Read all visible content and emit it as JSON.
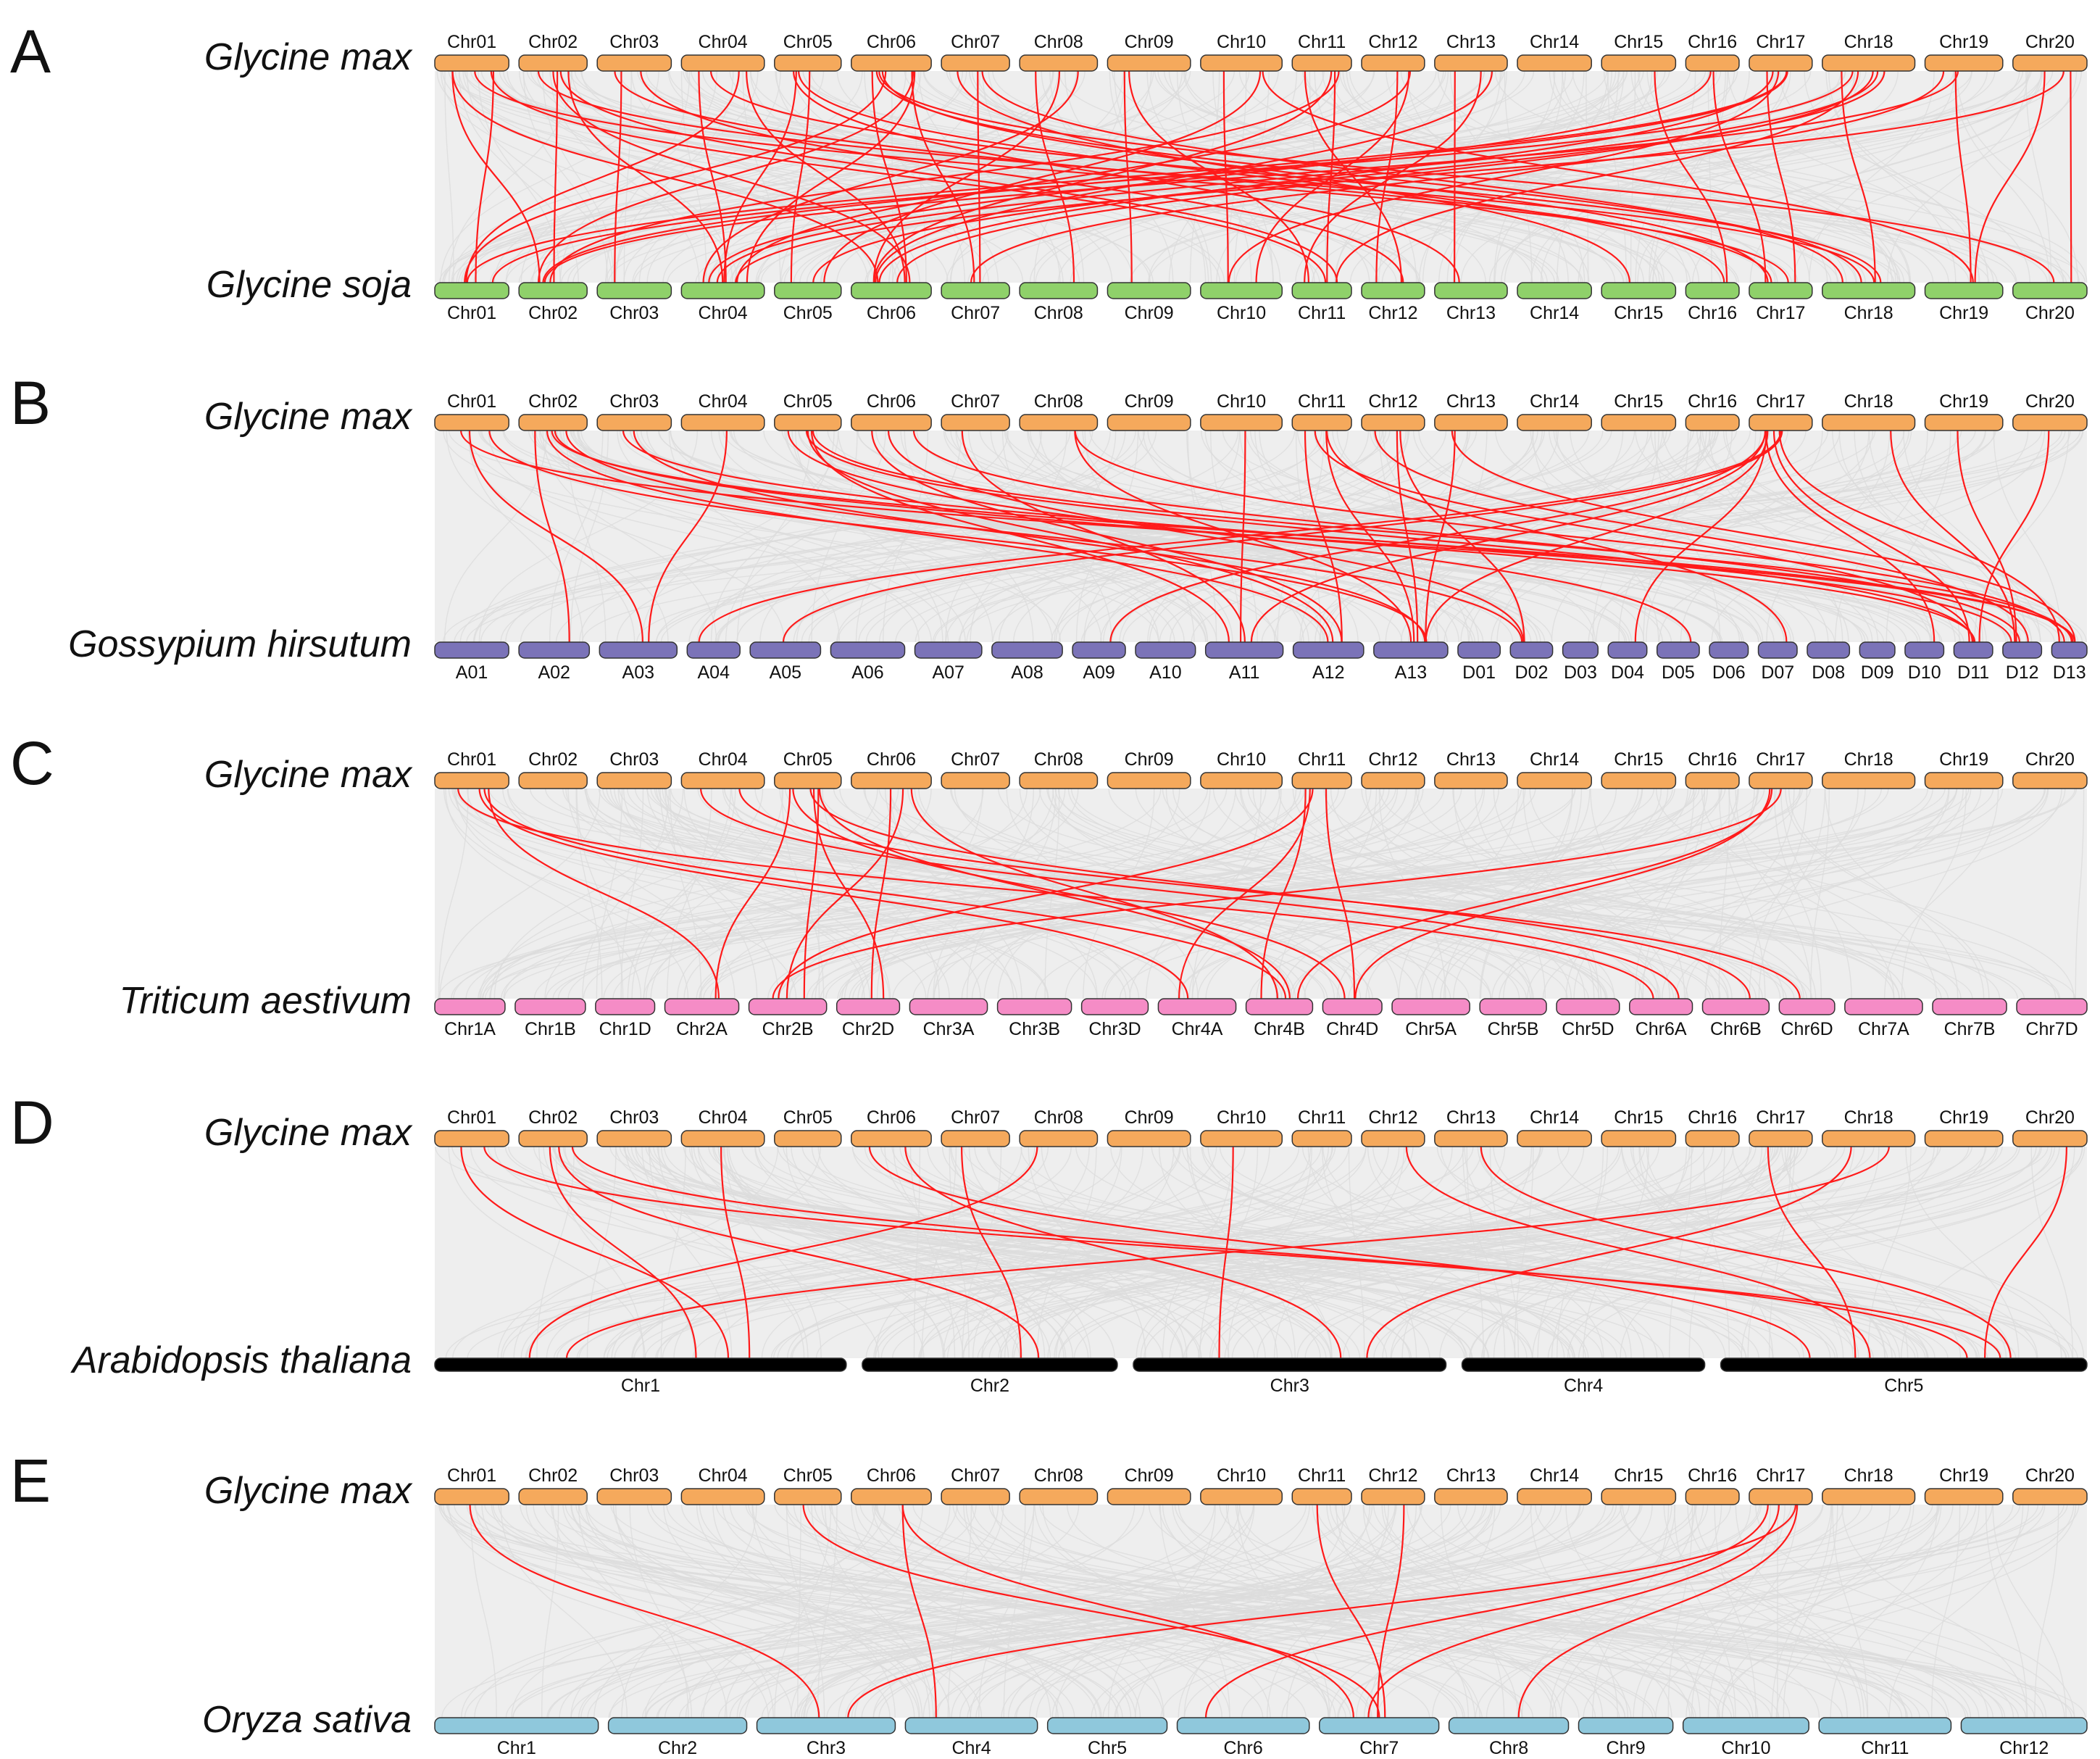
{
  "colors": {
    "bg_band": "#eeeeee",
    "synteny_bg": "#dcdcdc",
    "highlight": "#ff1a1a",
    "glycine_max": "#f5a95c",
    "glycine_soja": "#8fd16a",
    "gossypium": "#7b73b8",
    "triticum": "#f58cc6",
    "arabidopsis": "#000000",
    "oryza": "#8fc8dc"
  },
  "panels": [
    {
      "letter": "A",
      "top_species": "Glycine max",
      "bottom_species": "Glycine soja",
      "top_chromosomes": [
        "Chr01",
        "Chr02",
        "Chr03",
        "Chr04",
        "Chr05",
        "Chr06",
        "Chr07",
        "Chr08",
        "Chr09",
        "Chr10",
        "Chr11",
        "Chr12",
        "Chr13",
        "Chr14",
        "Chr15",
        "Chr16",
        "Chr17",
        "Chr18",
        "Chr19",
        "Chr20"
      ],
      "bottom_chromosomes": [
        "Chr01",
        "Chr02",
        "Chr03",
        "Chr04",
        "Chr05",
        "Chr06",
        "Chr07",
        "Chr08",
        "Chr09",
        "Chr10",
        "Chr11",
        "Chr12",
        "Chr13",
        "Chr14",
        "Chr15",
        "Chr16",
        "Chr17",
        "Chr18",
        "Chr19",
        "Chr20"
      ],
      "bottom_color_key": "glycine_soja",
      "links": [
        [
          0,
          0
        ],
        [
          0,
          1
        ],
        [
          0,
          5
        ],
        [
          0,
          10
        ],
        [
          0,
          16
        ],
        [
          1,
          1
        ],
        [
          1,
          3
        ],
        [
          1,
          5
        ],
        [
          1,
          10
        ],
        [
          1,
          17
        ],
        [
          2,
          2
        ],
        [
          2,
          11
        ],
        [
          2,
          16
        ],
        [
          3,
          3
        ],
        [
          3,
          0
        ],
        [
          3,
          5
        ],
        [
          3,
          17
        ],
        [
          4,
          4
        ],
        [
          4,
          3
        ],
        [
          4,
          15
        ],
        [
          4,
          12
        ],
        [
          5,
          5
        ],
        [
          5,
          0
        ],
        [
          5,
          1
        ],
        [
          5,
          3
        ],
        [
          5,
          6
        ],
        [
          5,
          16
        ],
        [
          5,
          17
        ],
        [
          5,
          19
        ],
        [
          6,
          6
        ],
        [
          6,
          14
        ],
        [
          6,
          17
        ],
        [
          7,
          7
        ],
        [
          7,
          3
        ],
        [
          7,
          5
        ],
        [
          8,
          8
        ],
        [
          8,
          10
        ],
        [
          9,
          9
        ],
        [
          9,
          4
        ],
        [
          9,
          18
        ],
        [
          10,
          10
        ],
        [
          10,
          1
        ],
        [
          10,
          5
        ],
        [
          10,
          11
        ],
        [
          11,
          11
        ],
        [
          11,
          9
        ],
        [
          11,
          3
        ],
        [
          12,
          12
        ],
        [
          12,
          10
        ],
        [
          12,
          5
        ],
        [
          14,
          15
        ],
        [
          15,
          16
        ],
        [
          15,
          3
        ],
        [
          16,
          16
        ],
        [
          16,
          0
        ],
        [
          16,
          1
        ],
        [
          16,
          5
        ],
        [
          16,
          9
        ],
        [
          17,
          17
        ],
        [
          17,
          3
        ],
        [
          17,
          0
        ],
        [
          17,
          4
        ],
        [
          17,
          5
        ],
        [
          17,
          10
        ],
        [
          18,
          18
        ],
        [
          18,
          1
        ],
        [
          18,
          6
        ],
        [
          19,
          19
        ],
        [
          19,
          18
        ],
        [
          19,
          3
        ]
      ]
    },
    {
      "letter": "B",
      "top_species": "Glycine max",
      "bottom_species": "Gossypium hirsutum",
      "top_chromosomes": [
        "Chr01",
        "Chr02",
        "Chr03",
        "Chr04",
        "Chr05",
        "Chr06",
        "Chr07",
        "Chr08",
        "Chr09",
        "Chr10",
        "Chr11",
        "Chr12",
        "Chr13",
        "Chr14",
        "Chr15",
        "Chr16",
        "Chr17",
        "Chr18",
        "Chr19",
        "Chr20"
      ],
      "bottom_chromosomes": [
        "A01",
        "A02",
        "A03",
        "A04",
        "A05",
        "A06",
        "A07",
        "A08",
        "A09",
        "A10",
        "A11",
        "A12",
        "A13",
        "D01",
        "D02",
        "D03",
        "D04",
        "D05",
        "D06",
        "D07",
        "D08",
        "D09",
        "D10",
        "D11",
        "D12",
        "D13"
      ],
      "bottom_color_key": "gossypium",
      "links": [
        [
          0,
          2
        ],
        [
          0,
          12
        ],
        [
          0,
          25
        ],
        [
          1,
          1
        ],
        [
          1,
          11
        ],
        [
          1,
          14
        ],
        [
          1,
          23
        ],
        [
          1,
          25
        ],
        [
          2,
          12
        ],
        [
          2,
          24
        ],
        [
          3,
          2
        ],
        [
          4,
          10
        ],
        [
          4,
          11
        ],
        [
          4,
          17
        ],
        [
          4,
          23
        ],
        [
          4,
          25
        ],
        [
          5,
          11
        ],
        [
          5,
          14
        ],
        [
          5,
          24
        ],
        [
          6,
          10
        ],
        [
          7,
          12
        ],
        [
          7,
          25
        ],
        [
          9,
          10
        ],
        [
          10,
          11
        ],
        [
          10,
          12
        ],
        [
          10,
          19
        ],
        [
          10,
          23
        ],
        [
          11,
          12
        ],
        [
          11,
          14
        ],
        [
          11,
          24
        ],
        [
          12,
          12
        ],
        [
          12,
          25
        ],
        [
          16,
          3
        ],
        [
          16,
          4
        ],
        [
          16,
          8
        ],
        [
          16,
          10
        ],
        [
          16,
          12
        ],
        [
          16,
          16
        ],
        [
          16,
          22
        ],
        [
          16,
          23
        ],
        [
          16,
          25
        ],
        [
          17,
          24
        ],
        [
          18,
          24
        ],
        [
          19,
          23
        ]
      ]
    },
    {
      "letter": "C",
      "top_species": "Glycine max",
      "bottom_species": "Triticum aestivum",
      "top_chromosomes": [
        "Chr01",
        "Chr02",
        "Chr03",
        "Chr04",
        "Chr05",
        "Chr06",
        "Chr07",
        "Chr08",
        "Chr09",
        "Chr10",
        "Chr11",
        "Chr12",
        "Chr13",
        "Chr14",
        "Chr15",
        "Chr16",
        "Chr17",
        "Chr18",
        "Chr19",
        "Chr20"
      ],
      "bottom_chromosomes": [
        "Chr1A",
        "Chr1B",
        "Chr1D",
        "Chr2A",
        "Chr2B",
        "Chr2D",
        "Chr3A",
        "Chr3B",
        "Chr3D",
        "Chr4A",
        "Chr4B",
        "Chr4D",
        "Chr5A",
        "Chr5B",
        "Chr5D",
        "Chr6A",
        "Chr6B",
        "Chr6D",
        "Chr7A",
        "Chr7B",
        "Chr7D"
      ],
      "bottom_color_key": "triticum",
      "links": [
        [
          0,
          3
        ],
        [
          0,
          9
        ],
        [
          0,
          10
        ],
        [
          0,
          15
        ],
        [
          3,
          15
        ],
        [
          3,
          17
        ],
        [
          4,
          3
        ],
        [
          4,
          4
        ],
        [
          4,
          5
        ],
        [
          4,
          10
        ],
        [
          4,
          11
        ],
        [
          4,
          16
        ],
        [
          5,
          4
        ],
        [
          5,
          5
        ],
        [
          5,
          10
        ],
        [
          10,
          4
        ],
        [
          10,
          9
        ],
        [
          10,
          10
        ],
        [
          10,
          11
        ],
        [
          16,
          4
        ],
        [
          16,
          10
        ],
        [
          16,
          11
        ]
      ]
    },
    {
      "letter": "D",
      "top_species": "Glycine max",
      "bottom_species": "Arabidopsis thaliana",
      "top_chromosomes": [
        "Chr01",
        "Chr02",
        "Chr03",
        "Chr04",
        "Chr05",
        "Chr06",
        "Chr07",
        "Chr08",
        "Chr09",
        "Chr10",
        "Chr11",
        "Chr12",
        "Chr13",
        "Chr14",
        "Chr15",
        "Chr16",
        "Chr17",
        "Chr18",
        "Chr19",
        "Chr20"
      ],
      "bottom_chromosomes": [
        "Chr1",
        "Chr2",
        "Chr3",
        "Chr4",
        "Chr5"
      ],
      "bottom_color_key": "arabidopsis",
      "links": [
        [
          0,
          0
        ],
        [
          0,
          4
        ],
        [
          1,
          0
        ],
        [
          1,
          1
        ],
        [
          1,
          4
        ],
        [
          3,
          0
        ],
        [
          5,
          2
        ],
        [
          5,
          4
        ],
        [
          6,
          1
        ],
        [
          7,
          0
        ],
        [
          9,
          2
        ],
        [
          11,
          4
        ],
        [
          12,
          4
        ],
        [
          16,
          4
        ],
        [
          17,
          0
        ],
        [
          17,
          2
        ],
        [
          19,
          4
        ]
      ]
    },
    {
      "letter": "E",
      "top_species": "Glycine max",
      "bottom_species": "Oryza sativa",
      "top_chromosomes": [
        "Chr01",
        "Chr02",
        "Chr03",
        "Chr04",
        "Chr05",
        "Chr06",
        "Chr07",
        "Chr08",
        "Chr09",
        "Chr10",
        "Chr11",
        "Chr12",
        "Chr13",
        "Chr14",
        "Chr15",
        "Chr16",
        "Chr17",
        "Chr18",
        "Chr19",
        "Chr20"
      ],
      "bottom_chromosomes": [
        "Chr1",
        "Chr2",
        "Chr3",
        "Chr4",
        "Chr5",
        "Chr6",
        "Chr7",
        "Chr8",
        "Chr9",
        "Chr10",
        "Chr11",
        "Chr12"
      ],
      "bottom_color_key": "oryza",
      "links": [
        [
          0,
          2
        ],
        [
          4,
          6
        ],
        [
          5,
          6
        ],
        [
          5,
          3
        ],
        [
          10,
          6
        ],
        [
          11,
          6
        ],
        [
          16,
          6
        ],
        [
          16,
          2
        ],
        [
          16,
          5
        ],
        [
          16,
          7
        ]
      ]
    }
  ]
}
